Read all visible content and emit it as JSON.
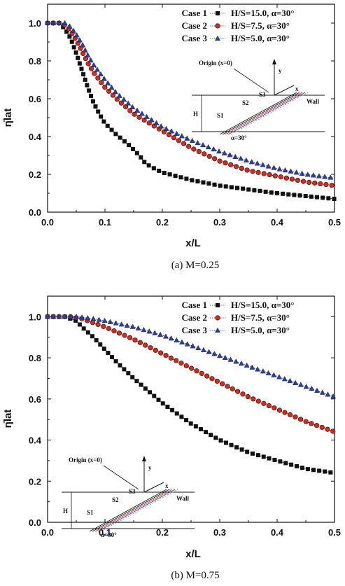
{
  "chart_data": [
    {
      "type": "line",
      "xlabel": "x/L",
      "ylabel": "η̄lat",
      "xlim": [
        0,
        0.5
      ],
      "ylim": [
        0,
        1.1
      ],
      "xticks": [
        "0.0",
        "0.1",
        "0.2",
        "0.3",
        "0.4",
        "0.5"
      ],
      "yticks": [
        "0.0",
        "0.2",
        "0.4",
        "0.6",
        "0.8",
        "1.0"
      ],
      "caption": "(a)  M=0.25",
      "legend_position": "top-right",
      "series": [
        {
          "name": "Case 1",
          "param": "H/S=15.0, α=30°",
          "marker": "square",
          "color": "#111111",
          "points": [
            [
              0.0,
              1.0
            ],
            [
              0.02,
              1.0
            ],
            [
              0.03,
              0.97
            ],
            [
              0.04,
              0.92
            ],
            [
              0.05,
              0.84
            ],
            [
              0.06,
              0.75
            ],
            [
              0.07,
              0.66
            ],
            [
              0.08,
              0.58
            ],
            [
              0.09,
              0.52
            ],
            [
              0.1,
              0.47
            ],
            [
              0.12,
              0.41
            ],
            [
              0.14,
              0.36
            ],
            [
              0.16,
              0.3
            ],
            [
              0.17,
              0.26
            ],
            [
              0.18,
              0.24
            ],
            [
              0.2,
              0.21
            ],
            [
              0.25,
              0.17
            ],
            [
              0.3,
              0.14
            ],
            [
              0.35,
              0.12
            ],
            [
              0.4,
              0.1
            ],
            [
              0.45,
              0.085
            ],
            [
              0.5,
              0.07
            ]
          ]
        },
        {
          "name": "Case 2",
          "param": "H/S=7.5,   α=30°",
          "marker": "circle",
          "color": "#d42a1f",
          "points": [
            [
              0.0,
              1.0
            ],
            [
              0.02,
              1.0
            ],
            [
              0.03,
              0.99
            ],
            [
              0.04,
              0.96
            ],
            [
              0.05,
              0.91
            ],
            [
              0.06,
              0.85
            ],
            [
              0.07,
              0.79
            ],
            [
              0.08,
              0.74
            ],
            [
              0.1,
              0.66
            ],
            [
              0.12,
              0.6
            ],
            [
              0.15,
              0.52
            ],
            [
              0.2,
              0.43
            ],
            [
              0.25,
              0.34
            ],
            [
              0.3,
              0.27
            ],
            [
              0.35,
              0.22
            ],
            [
              0.4,
              0.19
            ],
            [
              0.45,
              0.16
            ],
            [
              0.5,
              0.14
            ]
          ]
        },
        {
          "name": "Case 3",
          "param": "H/S=5.0,   α=30°",
          "marker": "triangle",
          "color": "#2b3f9e",
          "points": [
            [
              0.0,
              1.0
            ],
            [
              0.02,
              1.0
            ],
            [
              0.03,
              1.0
            ],
            [
              0.04,
              0.98
            ],
            [
              0.05,
              0.94
            ],
            [
              0.06,
              0.89
            ],
            [
              0.07,
              0.83
            ],
            [
              0.08,
              0.78
            ],
            [
              0.1,
              0.7
            ],
            [
              0.12,
              0.63
            ],
            [
              0.15,
              0.55
            ],
            [
              0.2,
              0.45
            ],
            [
              0.25,
              0.38
            ],
            [
              0.3,
              0.32
            ],
            [
              0.35,
              0.27
            ],
            [
              0.4,
              0.23
            ],
            [
              0.45,
              0.2
            ],
            [
              0.5,
              0.18
            ]
          ]
        }
      ]
    },
    {
      "type": "line",
      "xlabel": "x/L",
      "ylabel": "η̄lat",
      "xlim": [
        0,
        0.5
      ],
      "ylim": [
        0,
        1.1
      ],
      "xticks": [
        "0.0",
        "0.1",
        "0.2",
        "0.3",
        "0.4",
        "0.5"
      ],
      "yticks": [
        "0.0",
        "0.2",
        "0.4",
        "0.6",
        "0.8",
        "1.0"
      ],
      "caption": "(b)  M=0.75",
      "legend_position": "top-right",
      "series": [
        {
          "name": "Case 1",
          "param": "H/S=15.0, α=30°",
          "marker": "square",
          "color": "#111111",
          "points": [
            [
              0.0,
              1.0
            ],
            [
              0.03,
              1.0
            ],
            [
              0.04,
              0.99
            ],
            [
              0.05,
              0.98
            ],
            [
              0.06,
              0.95
            ],
            [
              0.08,
              0.9
            ],
            [
              0.1,
              0.84
            ],
            [
              0.12,
              0.78
            ],
            [
              0.15,
              0.7
            ],
            [
              0.2,
              0.58
            ],
            [
              0.25,
              0.48
            ],
            [
              0.3,
              0.4
            ],
            [
              0.35,
              0.34
            ],
            [
              0.4,
              0.3
            ],
            [
              0.45,
              0.26
            ],
            [
              0.5,
              0.24
            ]
          ]
        },
        {
          "name": "Case 2",
          "param": "H/S=7.5,   α=30°",
          "marker": "circle",
          "color": "#d42a1f",
          "points": [
            [
              0.0,
              1.0
            ],
            [
              0.04,
              1.0
            ],
            [
              0.06,
              0.99
            ],
            [
              0.08,
              0.97
            ],
            [
              0.1,
              0.95
            ],
            [
              0.15,
              0.89
            ],
            [
              0.2,
              0.82
            ],
            [
              0.25,
              0.75
            ],
            [
              0.3,
              0.68
            ],
            [
              0.35,
              0.61
            ],
            [
              0.4,
              0.55
            ],
            [
              0.45,
              0.49
            ],
            [
              0.5,
              0.44
            ]
          ]
        },
        {
          "name": "Case 3",
          "param": "H/S=5.0,   α=30°",
          "marker": "triangle",
          "color": "#2b3f9e",
          "points": [
            [
              0.0,
              1.0
            ],
            [
              0.05,
              1.0
            ],
            [
              0.08,
              0.99
            ],
            [
              0.1,
              0.98
            ],
            [
              0.15,
              0.95
            ],
            [
              0.2,
              0.91
            ],
            [
              0.25,
              0.86
            ],
            [
              0.3,
              0.81
            ],
            [
              0.35,
              0.76
            ],
            [
              0.4,
              0.71
            ],
            [
              0.45,
              0.66
            ],
            [
              0.5,
              0.61
            ]
          ]
        }
      ]
    }
  ],
  "inset": {
    "origin_label": "Origin (x=0)",
    "x_axis": "x",
    "y_axis": "y",
    "height_label": "H",
    "spacing_labels": [
      "S1",
      "S2",
      "S3"
    ],
    "wall_label": "Wall",
    "angle_label": "α=30°"
  }
}
